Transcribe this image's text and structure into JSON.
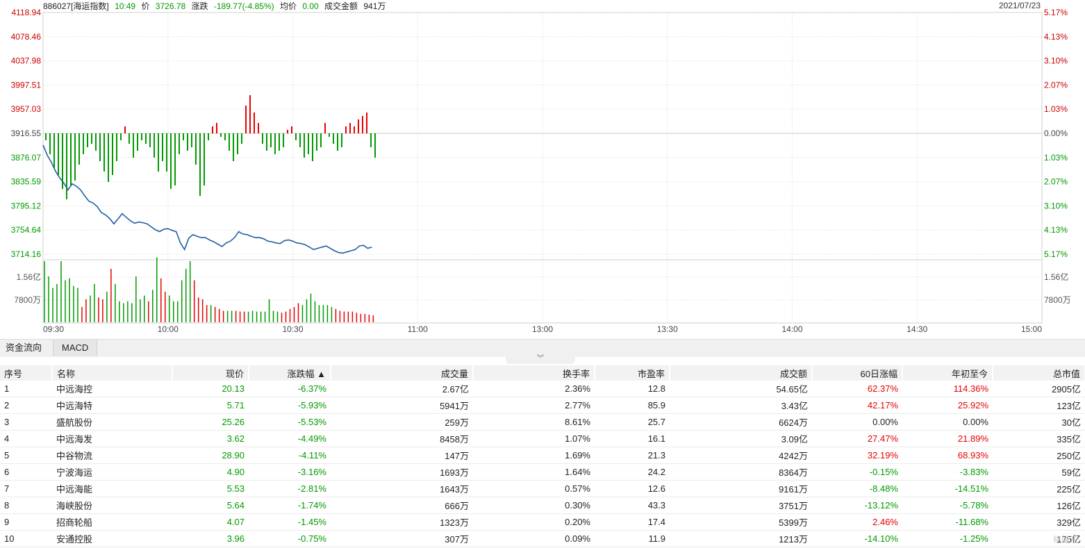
{
  "header": {
    "code_name": "886027[海运指数]",
    "time": "10:49",
    "price_label": "价",
    "price": "3726.78",
    "change_label": "涨跌",
    "change": "-189.77(-4.85%)",
    "avg_label": "均价",
    "avg": "0.00",
    "amount_label": "成交金额",
    "amount": "941万",
    "date": "2021/07/23"
  },
  "colors": {
    "up": "#e60000",
    "down": "#009900",
    "price_line": "#1f5fa0",
    "grid": "#d9d9d9"
  },
  "chart_data": {
    "type": "line",
    "y_labels_left": [
      "4118.94",
      "4078.46",
      "4037.98",
      "3997.51",
      "3957.03",
      "3916.55",
      "3876.07",
      "3835.59",
      "3795.12",
      "3754.64",
      "3714.16"
    ],
    "y_labels_right": [
      "5.17%",
      "4.13%",
      "3.10%",
      "2.07%",
      "1.03%",
      "0.00%",
      "1.03%",
      "2.07%",
      "3.10%",
      "4.13%",
      "5.17%"
    ],
    "y_range": [
      3714.16,
      4118.94
    ],
    "prev_close": 3916.55,
    "volume_labels": [
      "1.56亿",
      "7800万"
    ],
    "x_ticks": [
      "09:30",
      "10:00",
      "10:30",
      "11:00",
      "13:00",
      "13:30",
      "14:00",
      "14:30",
      "15:00"
    ],
    "price_series": {
      "minutes": [
        0,
        1,
        2,
        3,
        4,
        5,
        6,
        7,
        8,
        9,
        10,
        11,
        12,
        13,
        14,
        15,
        16,
        17,
        18,
        19,
        20,
        21,
        22,
        23,
        24,
        25,
        26,
        27,
        28,
        29,
        30,
        31,
        32,
        33,
        34,
        35,
        36,
        37,
        38,
        39,
        40,
        41,
        42,
        43,
        44,
        45,
        46,
        47,
        48,
        49,
        50,
        51,
        52,
        53,
        54,
        55,
        56,
        57,
        58,
        59,
        60,
        61,
        62,
        63,
        64,
        65,
        66,
        67,
        68,
        69,
        70,
        71,
        72,
        73,
        74,
        75,
        76,
        77,
        78,
        79
      ],
      "values": [
        3897,
        3880,
        3868,
        3853,
        3842,
        3833,
        3822,
        3832,
        3828,
        3822,
        3812,
        3803,
        3800,
        3794,
        3784,
        3780,
        3774,
        3765,
        3773,
        3782,
        3776,
        3770,
        3766,
        3768,
        3767,
        3765,
        3760,
        3755,
        3752,
        3756,
        3757,
        3754,
        3752,
        3733,
        3722,
        3741,
        3747,
        3744,
        3742,
        3742,
        3738,
        3735,
        3731,
        3727,
        3733,
        3736,
        3742,
        3752,
        3748,
        3747,
        3744,
        3742,
        3742,
        3740,
        3736,
        3735,
        3733,
        3732,
        3737,
        3738,
        3736,
        3733,
        3732,
        3730,
        3726,
        3722,
        3724,
        3726,
        3728,
        3724,
        3720,
        3717,
        3716,
        3718,
        3720,
        3722,
        3728,
        3729,
        3724,
        3726
      ]
    },
    "diff_bars": [
      -10,
      -30,
      -50,
      -60,
      -80,
      -95,
      -75,
      -68,
      -45,
      -30,
      -20,
      -15,
      -25,
      -40,
      -55,
      -70,
      -60,
      -40,
      -10,
      10,
      -15,
      -35,
      -25,
      -10,
      -15,
      -20,
      -35,
      -55,
      -40,
      -55,
      -80,
      -75,
      -30,
      -10,
      -25,
      -20,
      -45,
      -90,
      -75,
      -10,
      10,
      15,
      -5,
      -10,
      -25,
      -40,
      -30,
      -15,
      40,
      55,
      30,
      15,
      -15,
      -25,
      -20,
      -30,
      -25,
      -20,
      5,
      10,
      -10,
      -20,
      -35,
      -30,
      -40,
      -25,
      -20,
      15,
      -5,
      -15,
      -25,
      -20,
      10,
      15,
      10,
      20,
      25,
      30,
      -20,
      -35
    ],
    "volume_bars": {
      "values": [
        160,
        120,
        90,
        100,
        160,
        110,
        115,
        95,
        90,
        40,
        60,
        70,
        100,
        65,
        60,
        80,
        140,
        100,
        55,
        50,
        55,
        50,
        120,
        60,
        70,
        55,
        85,
        170,
        115,
        80,
        70,
        55,
        55,
        110,
        140,
        160,
        110,
        65,
        60,
        45,
        45,
        40,
        35,
        30,
        30,
        30,
        30,
        28,
        28,
        28,
        30,
        28,
        28,
        28,
        60,
        30,
        28,
        25,
        28,
        35,
        40,
        50,
        45,
        60,
        75,
        55,
        45,
        45,
        45,
        40,
        35,
        30,
        28,
        28,
        28,
        25,
        22,
        22,
        20,
        18
      ],
      "up_flags": [
        0,
        0,
        0,
        0,
        0,
        0,
        0,
        0,
        0,
        1,
        1,
        0,
        0,
        1,
        1,
        0,
        1,
        0,
        0,
        0,
        0,
        0,
        0,
        0,
        0,
        1,
        0,
        0,
        1,
        1,
        0,
        0,
        0,
        0,
        0,
        0,
        1,
        1,
        1,
        1,
        0,
        1,
        1,
        1,
        0,
        0,
        1,
        1,
        1,
        0,
        0,
        0,
        0,
        0,
        0,
        0,
        0,
        1,
        1,
        1,
        1,
        1,
        0,
        0,
        0,
        0,
        0,
        0,
        0,
        0,
        1,
        1,
        1,
        1,
        1,
        1,
        1,
        1,
        1,
        1
      ]
    }
  },
  "tabs": [
    "资金流向",
    "MACD"
  ],
  "table": {
    "columns": [
      "序号",
      "名称",
      "现价",
      "涨跌幅",
      "成交量",
      "换手率",
      "市盈率",
      "成交额",
      "60日涨幅",
      "年初至今",
      "总市值"
    ],
    "sort_marker": "▲",
    "rows": [
      [
        "1",
        "中远海控",
        "20.13",
        "-6.37%",
        "2.67亿",
        "2.36%",
        "12.8",
        "54.65亿",
        "62.37%",
        "114.36%",
        "2905亿"
      ],
      [
        "2",
        "中远海特",
        "5.71",
        "-5.93%",
        "5941万",
        "2.77%",
        "85.9",
        "3.43亿",
        "42.17%",
        "25.92%",
        "123亿"
      ],
      [
        "3",
        "盛航股份",
        "25.26",
        "-5.53%",
        "259万",
        "8.61%",
        "25.7",
        "6624万",
        "0.00%",
        "0.00%",
        "30亿"
      ],
      [
        "4",
        "中远海发",
        "3.62",
        "-4.49%",
        "8458万",
        "1.07%",
        "16.1",
        "3.09亿",
        "27.47%",
        "21.89%",
        "335亿"
      ],
      [
        "5",
        "中谷物流",
        "28.90",
        "-4.11%",
        "147万",
        "1.69%",
        "21.3",
        "4242万",
        "32.19%",
        "68.93%",
        "250亿"
      ],
      [
        "6",
        "宁波海运",
        "4.90",
        "-3.16%",
        "1693万",
        "1.64%",
        "24.2",
        "8364万",
        "-0.15%",
        "-3.83%",
        "59亿"
      ],
      [
        "7",
        "中远海能",
        "5.53",
        "-2.81%",
        "1643万",
        "0.57%",
        "12.6",
        "9161万",
        "-8.48%",
        "-14.51%",
        "225亿"
      ],
      [
        "8",
        "海峡股份",
        "5.64",
        "-1.74%",
        "666万",
        "0.30%",
        "43.3",
        "3751万",
        "-13.12%",
        "-5.78%",
        "126亿"
      ],
      [
        "9",
        "招商轮船",
        "4.07",
        "-1.45%",
        "1323万",
        "0.20%",
        "17.4",
        "5399万",
        "2.46%",
        "-11.68%",
        "329亿"
      ],
      [
        "10",
        "安通控股",
        "3.96",
        "-0.75%",
        "307万",
        "0.09%",
        "11.9",
        "1213万",
        "-14.10%",
        "-1.25%",
        "175亿"
      ]
    ],
    "row_colors": [
      [
        "flat",
        "flat",
        "down",
        "down",
        "flat",
        "flat",
        "flat",
        "flat",
        "up",
        "up",
        "flat"
      ],
      [
        "flat",
        "flat",
        "down",
        "down",
        "flat",
        "flat",
        "flat",
        "flat",
        "up",
        "up",
        "flat"
      ],
      [
        "flat",
        "flat",
        "down",
        "down",
        "flat",
        "flat",
        "flat",
        "flat",
        "flat",
        "flat",
        "flat"
      ],
      [
        "flat",
        "flat",
        "down",
        "down",
        "flat",
        "flat",
        "flat",
        "flat",
        "up",
        "up",
        "flat"
      ],
      [
        "flat",
        "flat",
        "down",
        "down",
        "flat",
        "flat",
        "flat",
        "flat",
        "up",
        "up",
        "flat"
      ],
      [
        "flat",
        "flat",
        "down",
        "down",
        "flat",
        "flat",
        "flat",
        "flat",
        "down",
        "down",
        "flat"
      ],
      [
        "flat",
        "flat",
        "down",
        "down",
        "flat",
        "flat",
        "flat",
        "flat",
        "down",
        "down",
        "flat"
      ],
      [
        "flat",
        "flat",
        "down",
        "down",
        "flat",
        "flat",
        "flat",
        "flat",
        "down",
        "down",
        "flat"
      ],
      [
        "flat",
        "flat",
        "down",
        "down",
        "flat",
        "flat",
        "flat",
        "flat",
        "up",
        "down",
        "flat"
      ],
      [
        "flat",
        "flat",
        "down",
        "down",
        "flat",
        "flat",
        "flat",
        "flat",
        "down",
        "down",
        "flat"
      ]
    ]
  },
  "watermark": "格隆汇"
}
